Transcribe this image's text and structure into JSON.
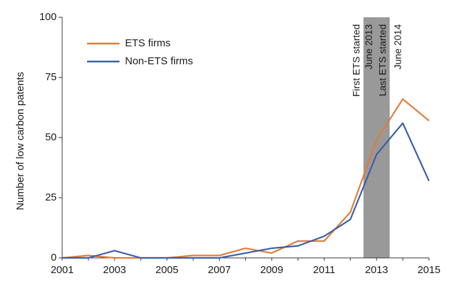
{
  "chart_data": {
    "type": "line",
    "ylabel": "Number of low carbon patents",
    "xlim": [
      2001,
      2015
    ],
    "ylim": [
      0,
      100
    ],
    "xticks": [
      2001,
      2003,
      2005,
      2007,
      2009,
      2011,
      2013,
      2015
    ],
    "yticks": [
      0,
      25,
      50,
      75,
      100
    ],
    "grid": false,
    "legend_position": "top-left",
    "x": [
      2001,
      2002,
      2003,
      2004,
      2005,
      2006,
      2007,
      2008,
      2009,
      2010,
      2011,
      2012,
      2013,
      2014,
      2015
    ],
    "series": [
      {
        "name": "ETS firms",
        "color": "#e07b39",
        "values": [
          0,
          1,
          0,
          0,
          0,
          1,
          1,
          4,
          2,
          7,
          7,
          19,
          49,
          66,
          57
        ]
      },
      {
        "name": "Non-ETS firms",
        "color": "#3a5fa8",
        "values": [
          0,
          0,
          3,
          0,
          0,
          0,
          0,
          2,
          4,
          5,
          9,
          16,
          43,
          56,
          32
        ]
      }
    ],
    "shaded_period": {
      "from": 2012.5,
      "to": 2013.5,
      "color": "#999999",
      "labels": [
        "First ETS started",
        "June 2013",
        "Last ETS started",
        "June 2014"
      ]
    }
  }
}
